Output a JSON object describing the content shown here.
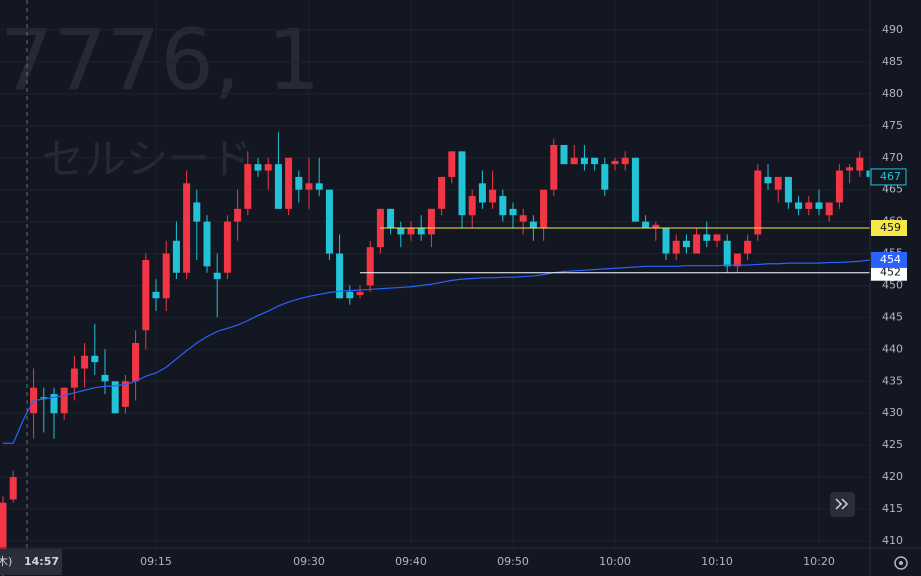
{
  "chart_data": {
    "type": "candlestick",
    "watermark_symbol": "7776, 1",
    "watermark_name": "セルシード",
    "crosshair": {
      "day": "木)",
      "time": "14:57"
    },
    "categories": [
      null,
      null,
      null,
      null,
      null,
      null,
      null,
      null,
      null,
      null,
      null,
      null,
      null,
      null,
      null,
      "09:15",
      null,
      null,
      null,
      null,
      null,
      null,
      null,
      null,
      null,
      null,
      null,
      null,
      null,
      null,
      "09:30",
      null,
      null,
      null,
      null,
      null,
      null,
      null,
      null,
      null,
      "09:40",
      null,
      null,
      null,
      null,
      null,
      null,
      null,
      null,
      null,
      "09:50",
      null,
      null,
      null,
      null,
      null,
      null,
      null,
      null,
      null,
      "10:00",
      null,
      null,
      null,
      null,
      null,
      null,
      null,
      null,
      null,
      "10:10",
      null,
      null,
      null,
      null,
      null,
      null,
      null,
      null,
      null,
      "10:20",
      null,
      null,
      null,
      null,
      null
    ],
    "open": [
      406,
      416.5,
      null,
      430,
      432.5,
      433,
      430,
      434,
      437,
      439,
      436,
      435,
      431,
      435,
      443,
      449,
      448,
      457,
      452,
      463,
      460,
      452,
      452,
      460,
      462,
      469,
      468,
      469,
      462,
      467,
      465,
      466,
      465,
      455,
      449,
      448.5,
      450,
      456,
      462,
      459,
      458,
      459,
      458,
      462,
      467,
      471,
      461,
      466,
      463,
      464,
      462,
      460,
      460,
      459,
      465,
      472,
      469,
      470,
      470,
      469,
      469,
      469,
      470,
      460,
      459,
      459,
      455,
      457,
      455,
      458,
      457,
      457,
      453,
      455,
      458,
      467,
      465,
      467,
      463,
      462,
      463,
      461,
      463,
      468,
      468,
      468
    ],
    "high": [
      417,
      421,
      null,
      437,
      434,
      434,
      434,
      439,
      441,
      444,
      440,
      435,
      436,
      443,
      455,
      451,
      457,
      460,
      468,
      465,
      461,
      455,
      461,
      465,
      471,
      470,
      470,
      474,
      470,
      468,
      470,
      470,
      465,
      458,
      450,
      450,
      457,
      462,
      462,
      460,
      460,
      461,
      462,
      467,
      471,
      471,
      465,
      468,
      468,
      465,
      463,
      462,
      461,
      465,
      473,
      472,
      472,
      472,
      470,
      470,
      470,
      471,
      470,
      461,
      460,
      459,
      458,
      458,
      459,
      460,
      458,
      458,
      455,
      458,
      469,
      469,
      467,
      467,
      464,
      464,
      465,
      463,
      469,
      469,
      471,
      469
    ],
    "low": [
      404,
      416,
      null,
      426,
      427,
      426,
      429,
      432,
      434,
      436,
      433,
      430,
      430,
      432,
      440,
      446,
      446,
      451,
      451,
      454,
      452,
      445,
      451,
      457,
      461,
      467,
      465,
      462,
      461,
      463,
      462,
      464,
      454,
      448,
      447,
      448,
      449,
      455,
      458,
      456,
      457,
      457,
      456,
      461,
      466,
      459,
      459,
      462,
      462,
      460,
      459,
      458,
      457,
      457,
      464,
      469,
      469,
      468,
      468,
      464,
      468,
      468,
      460,
      459,
      457,
      454,
      454,
      455,
      455,
      456,
      456,
      452,
      452,
      454,
      457,
      465,
      463,
      462,
      461,
      461,
      461,
      460,
      462,
      466,
      467,
      465
    ],
    "close": [
      416,
      420,
      null,
      434,
      432.3,
      430,
      434,
      437,
      439,
      438,
      435,
      430,
      435,
      441,
      454,
      448,
      455,
      452,
      466,
      460,
      453,
      451,
      460,
      462,
      469,
      468,
      469,
      462,
      470,
      465,
      466,
      465,
      455,
      448,
      448,
      449,
      456,
      462,
      459,
      458,
      459,
      458,
      462,
      467,
      471,
      461,
      464,
      463,
      465,
      461,
      461,
      461,
      459,
      465,
      472,
      469,
      470,
      469,
      469,
      465,
      469.5,
      470,
      460,
      459,
      459.5,
      455,
      457,
      456,
      458,
      457,
      458,
      453,
      455,
      457,
      468,
      466,
      467,
      463,
      462,
      463,
      462,
      463,
      468,
      468.5,
      470,
      467
    ],
    "up_color": "#f23645",
    "down_color": "#22c3d6",
    "vwap": {
      "color": "#2962ff",
      "values": [
        425.3,
        425.3,
        429,
        432,
        432.2,
        432.5,
        432.8,
        433.2,
        433.6,
        434,
        434.2,
        434.3,
        434.5,
        435,
        435.8,
        436.3,
        437.2,
        438.5,
        439.8,
        441,
        442,
        442.8,
        443.3,
        443.8,
        444.5,
        445.3,
        446,
        446.8,
        447.4,
        447.9,
        448.3,
        448.6,
        448.9,
        449.1,
        449.2,
        449.3,
        449.4,
        449.5,
        449.6,
        449.7,
        449.8,
        450,
        450.2,
        450.5,
        450.8,
        451,
        451.1,
        451.2,
        451.2,
        451.3,
        451.3,
        451.4,
        451.5,
        451.7,
        452,
        452.2,
        452.3,
        452.4,
        452.5,
        452.6,
        452.7,
        452.8,
        452.9,
        453,
        453,
        453,
        453,
        453.1,
        453.1,
        453.1,
        453.1,
        453.2,
        453.2,
        453.2,
        453.3,
        453.4,
        453.4,
        453.5,
        453.5,
        453.5,
        453.5,
        453.6,
        453.6,
        453.7,
        453.8,
        454
      ]
    },
    "levels": [
      {
        "value": 459,
        "color": "#f5e94a"
      },
      {
        "value": 452,
        "color": "#ffffff"
      }
    ],
    "ylim": [
      408.9,
      494.7
    ],
    "yticks": [
      410,
      415,
      420,
      425,
      430,
      435,
      440,
      445,
      450,
      455,
      460,
      465,
      470,
      475,
      480,
      485,
      490
    ],
    "grid": true
  }
}
